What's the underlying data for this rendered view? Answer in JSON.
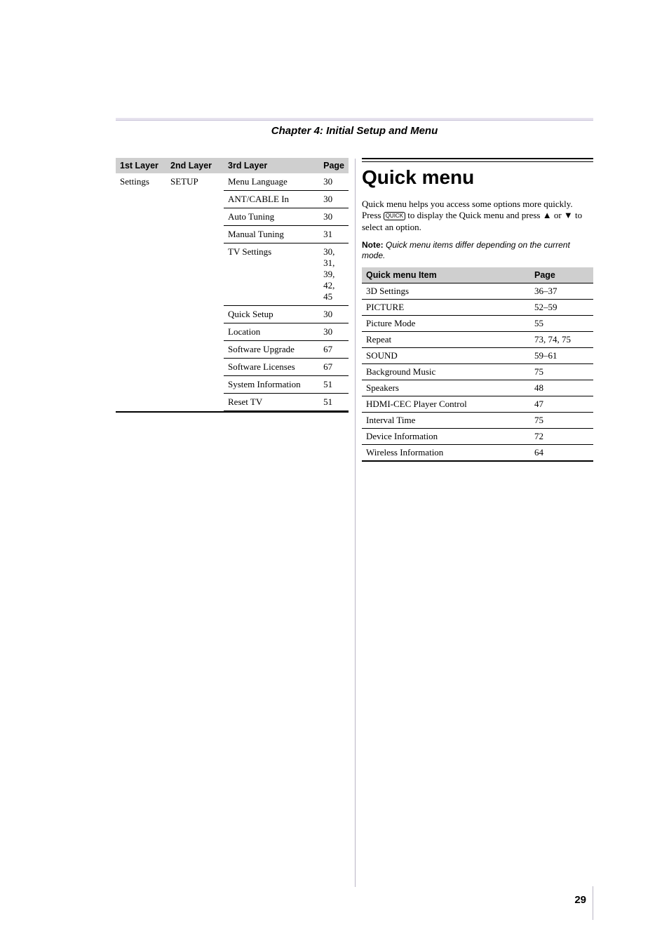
{
  "chapter_title": "Chapter 4: Initial Setup and Menu",
  "left_table": {
    "headers": [
      "1st Layer",
      "2nd Layer",
      "3rd Layer",
      "Page"
    ],
    "first_layer": "Settings",
    "second_layer": "SETUP",
    "rows": [
      {
        "third": "Menu Language",
        "page": "30"
      },
      {
        "third": "ANT/CABLE In",
        "page": "30"
      },
      {
        "third": "Auto Tuning",
        "page": "30"
      },
      {
        "third": "Manual Tuning",
        "page": "31"
      },
      {
        "third": "TV Settings",
        "page": "30, 31, 39, 42, 45"
      },
      {
        "third": "Quick Setup",
        "page": "30"
      },
      {
        "third": "Location",
        "page": "30"
      },
      {
        "third": "Software Upgrade",
        "page": "67"
      },
      {
        "third": "Software Licenses",
        "page": "67"
      },
      {
        "third": "System Information",
        "page": "51"
      },
      {
        "third": "Reset TV",
        "page": "51"
      }
    ]
  },
  "quick_menu": {
    "title": "Quick menu",
    "para1": "Quick menu helps you access some options more quickly.",
    "para2a": "Press ",
    "quick_key": "QUICK",
    "para2b": " to display the Quick menu and press ▲ or ▼ to select an option.",
    "note_label": "Note:",
    "note_text": " Quick menu items differ depending on the current mode.",
    "table": {
      "headers": [
        "Quick menu Item",
        "Page"
      ],
      "rows": [
        {
          "item": "3D Settings",
          "page": "36–37"
        },
        {
          "item": "PICTURE",
          "page": "52–59"
        },
        {
          "item": "Picture Mode",
          "page": "55"
        },
        {
          "item": "Repeat",
          "page": "73, 74, 75"
        },
        {
          "item": "SOUND",
          "page": "59–61"
        },
        {
          "item": "Background Music",
          "page": "75"
        },
        {
          "item": "Speakers",
          "page": "48"
        },
        {
          "item": "HDMI-CEC Player Control",
          "page": "47"
        },
        {
          "item": "Interval Time",
          "page": "75"
        },
        {
          "item": "Device Information",
          "page": "72"
        },
        {
          "item": "Wireless Information",
          "page": "64"
        }
      ]
    }
  },
  "page_number": "29"
}
